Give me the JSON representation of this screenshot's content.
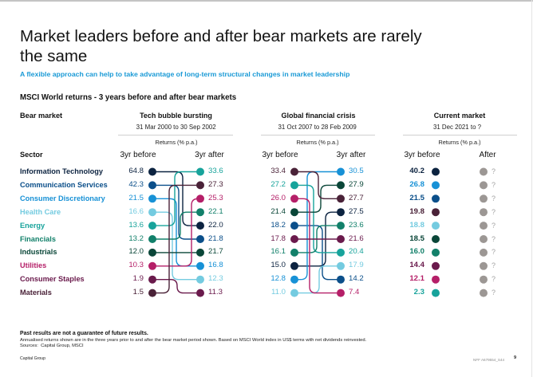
{
  "page": {
    "title": "Market leaders before and after bear markets are rarely the same",
    "subtitle": "A flexible approach can help to take advantage of long-term structural changes in market leadership"
  },
  "colors": {
    "subtitle": "#1a9ad6",
    "unknown_dot": "#9c9794",
    "unknown_text": "#a3a3a3",
    "rule": "#cfcfcf"
  },
  "chart_data": {
    "type": "table",
    "title": "MSCI World returns - 3 years before and after bear markets",
    "row_header_bear_market": "Bear market",
    "row_header_sector": "Sector",
    "units": "Returns (% p.a.)",
    "sectors": [
      {
        "name": "Information Technology",
        "color": "#0c2340"
      },
      {
        "name": "Communication Services",
        "color": "#0b4f8a"
      },
      {
        "name": "Consumer Discretionary",
        "color": "#1791d6"
      },
      {
        "name": "Health Care",
        "color": "#74cbe0"
      },
      {
        "name": "Energy",
        "color": "#17a39b"
      },
      {
        "name": "Financials",
        "color": "#12806a"
      },
      {
        "name": "Industrials",
        "color": "#0a4638"
      },
      {
        "name": "Utilities",
        "color": "#b51f68"
      },
      {
        "name": "Consumer Staples",
        "color": "#6a1a4c"
      },
      {
        "name": "Materials",
        "color": "#4a2238"
      }
    ],
    "periods": [
      {
        "name": "Tech bubble bursting",
        "dates": "31 Mar 2000 to 30 Sep 2002",
        "returns_label": "Returns (% p.a.)",
        "before_label": "3yr before",
        "after_label": "3yr after",
        "before": [
          "64.8",
          "42.3",
          "21.5",
          "16.6",
          "13.6",
          "13.2",
          "12.0",
          "10.3",
          "1.9",
          "1.5"
        ],
        "after": [
          "22.0",
          "21.8",
          "16.8",
          "12.3",
          "33.6",
          "22.1",
          "21.7",
          "25.3",
          "11.3",
          "27.3"
        ]
      },
      {
        "name": "Global financial crisis",
        "dates": "31 Oct 2007 to 28 Feb 2009",
        "returns_label": "Returns (% p.a.)",
        "before_label": "3yr before",
        "after_label": "3yr after",
        "before": [
          "15.0",
          "18.2",
          "12.8",
          "11.0",
          "27.2",
          "16.1",
          "21.4",
          "26.0",
          "17.8",
          "33.4"
        ],
        "after": [
          "27.5",
          "14.2",
          "30.5",
          "17.9",
          "20.4",
          "23.6",
          "27.9",
          "7.4",
          "21.6",
          "27.7"
        ]
      },
      {
        "name": "Current market",
        "dates": "31 Dec 2021 to ?",
        "returns_label": "Returns (% p.a.)",
        "before_label": "3yr before",
        "after_label": "After",
        "before": [
          "40.2",
          "21.5",
          "26.8",
          "18.8",
          "2.3",
          "16.0",
          "18.5",
          "12.1",
          "14.4",
          "19.8"
        ],
        "after": [
          "?",
          "?",
          "?",
          "?",
          "?",
          "?",
          "?",
          "?",
          "?",
          "?"
        ]
      }
    ]
  },
  "footer": {
    "disclaimer": "Past results are not a guarantee of future results.",
    "note": "Annualised returns shown are in the three years prior to and after the bear market period shown. Based on MSCI World index in US$ terms with net dividends reinvested.",
    "sources": "Sources:  Capital Group, MSCI",
    "company": "Capital Group",
    "doc_id": "NFF A679554_S44",
    "page_number": "9"
  }
}
